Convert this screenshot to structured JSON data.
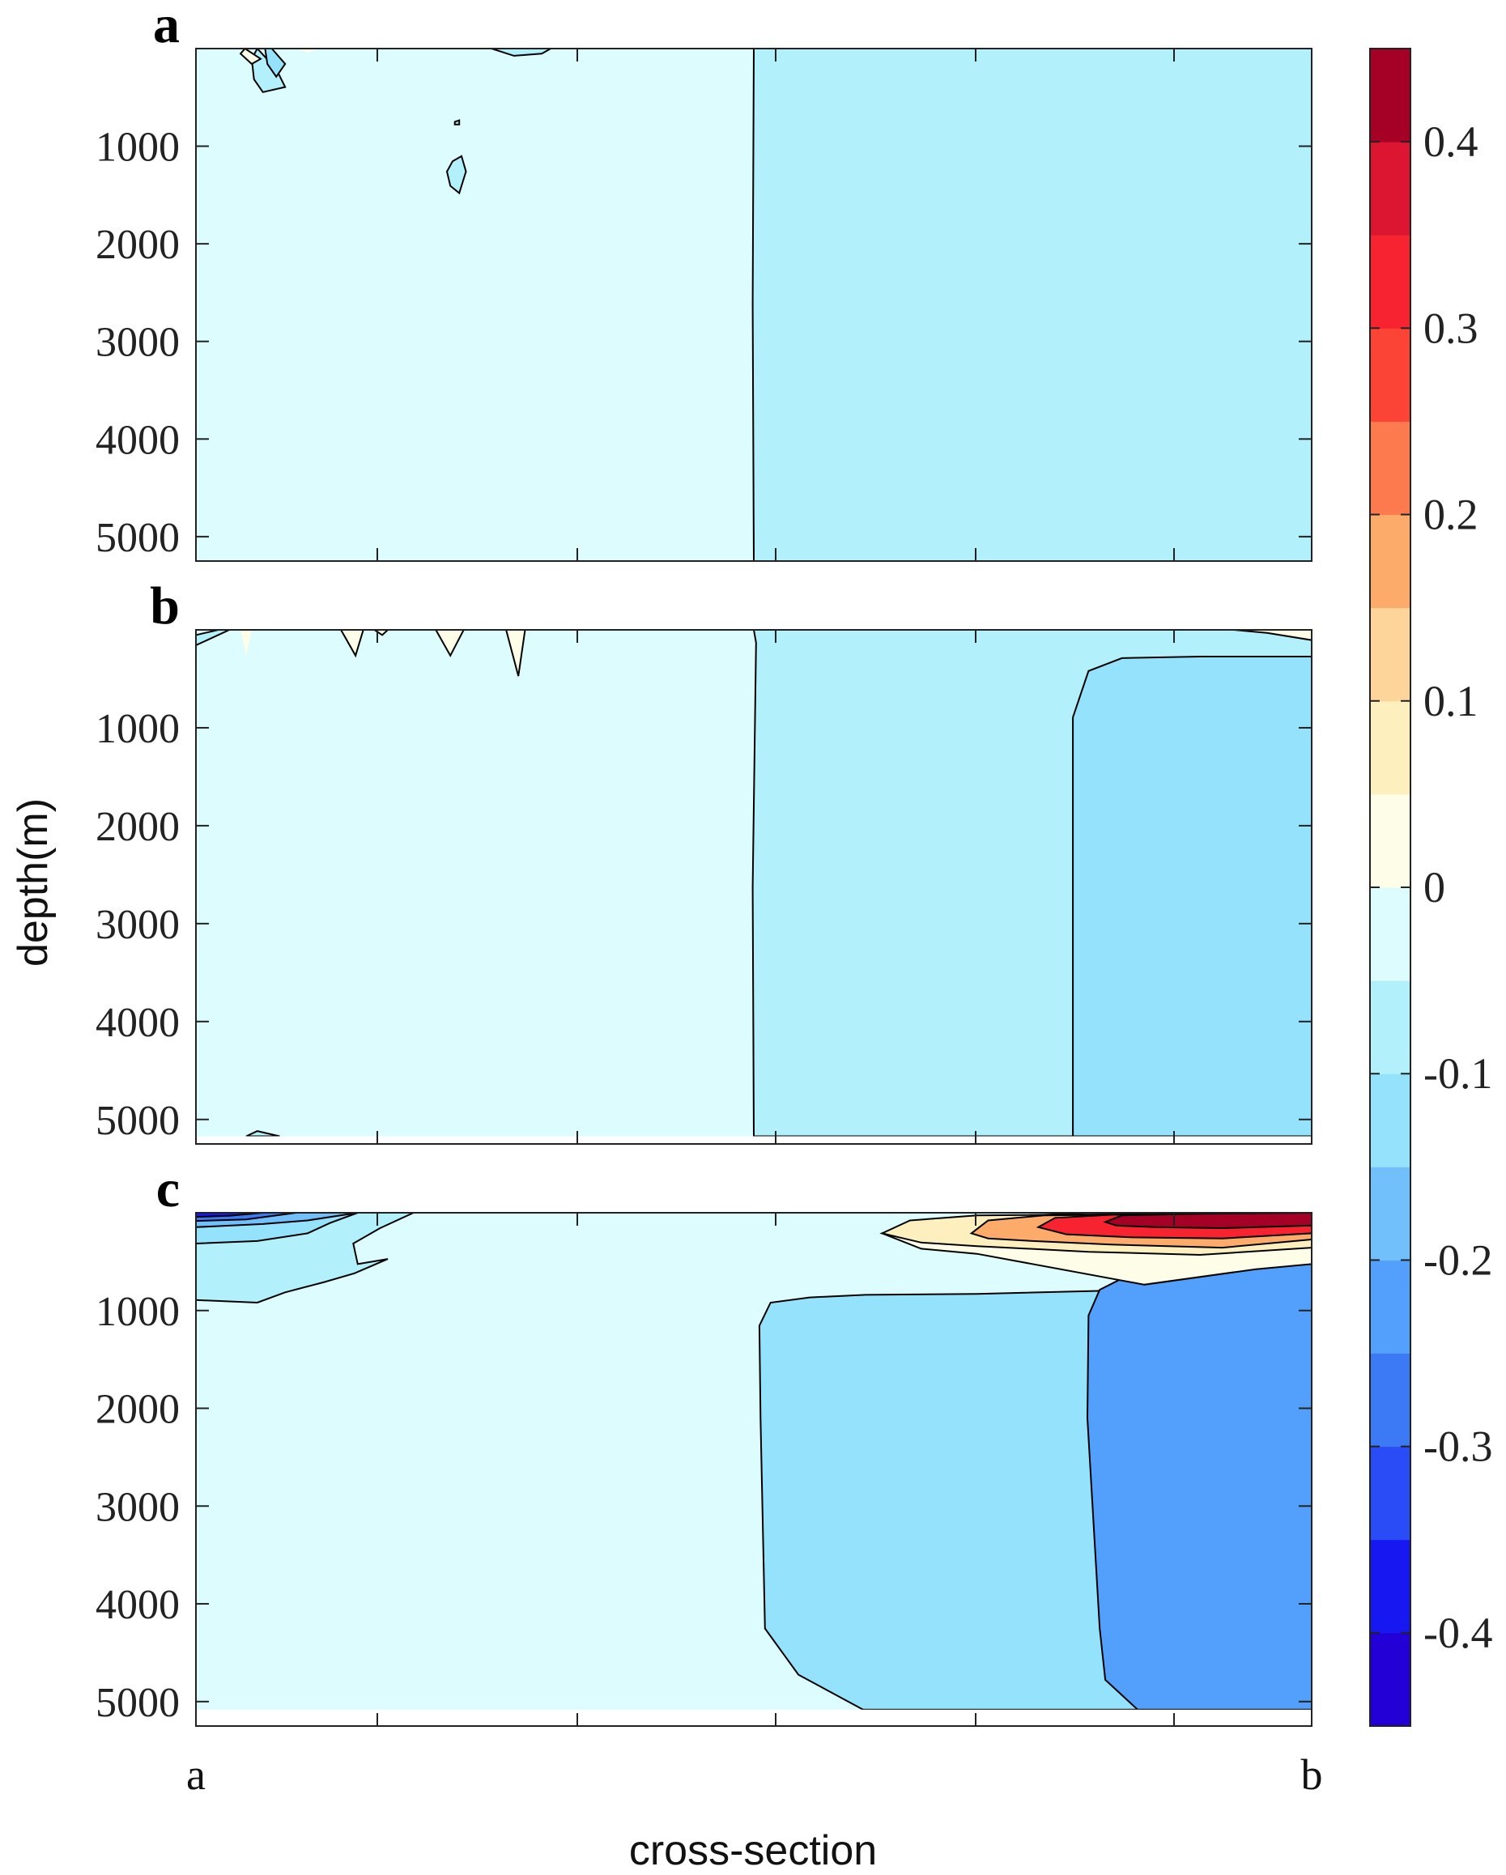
{
  "chart_data": {
    "type": "contourf",
    "xlabel": "cross-section",
    "ylabel": "depth(m)",
    "x_endpoints": [
      "a",
      "b"
    ],
    "yticks": [
      1000,
      2000,
      3000,
      4000,
      5000
    ],
    "ylim": [
      0,
      5250
    ],
    "y_reversed": true,
    "panels": [
      {
        "label": "a"
      },
      {
        "label": "b"
      },
      {
        "label": "c"
      }
    ],
    "colorbar": {
      "levels": [
        -0.45,
        -0.4,
        -0.35,
        -0.3,
        -0.25,
        -0.2,
        -0.15,
        -0.1,
        -0.05,
        0,
        0.05,
        0.1,
        0.15,
        0.2,
        0.25,
        0.3,
        0.35,
        0.4,
        0.45
      ],
      "colors": [
        "#2200d6",
        "#1717f2",
        "#2a4cf6",
        "#3c79f5",
        "#52a0fb",
        "#72c0fb",
        "#94e2fb",
        "#b2f0fb",
        "#dcfcfd",
        "#fefde8",
        "#fdf0be",
        "#fdd49a",
        "#fdab6b",
        "#fd7a4f",
        "#fc4436",
        "#f72330",
        "#dc1630",
        "#a50026"
      ],
      "tick_values": [
        -0.4,
        -0.3,
        -0.2,
        -0.1,
        0,
        0.1,
        0.2,
        0.3,
        0.4
      ],
      "tick_labels": [
        "-0.4",
        "-0.3",
        "-0.2",
        "-0.1",
        "0",
        "0.1",
        "0.2",
        "0.3",
        "0.4"
      ]
    }
  }
}
